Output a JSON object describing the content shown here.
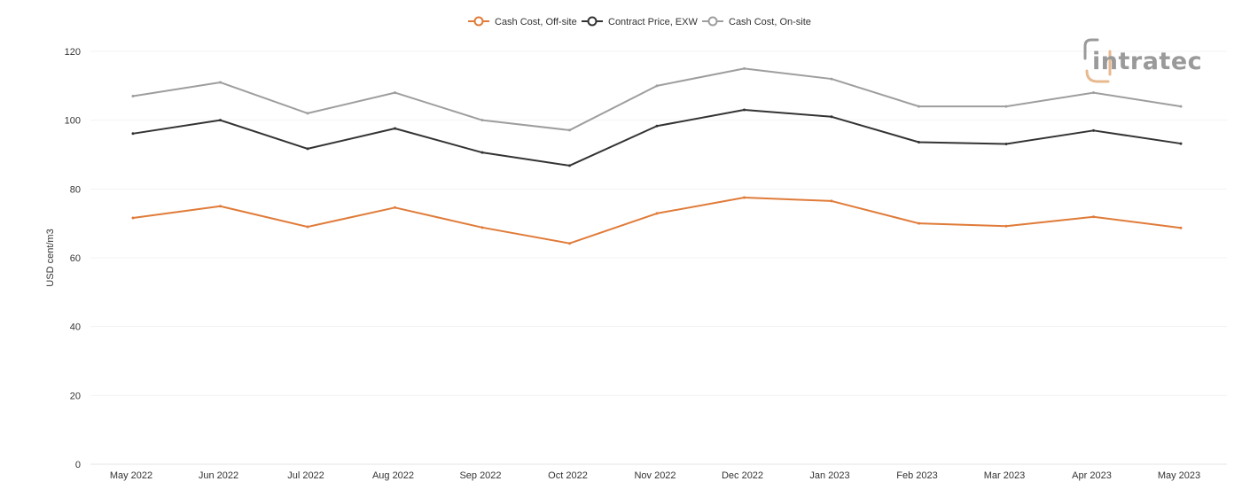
{
  "chart_data": {
    "type": "line",
    "categories": [
      "May 2022",
      "Jun 2022",
      "Jul 2022",
      "Aug 2022",
      "Sep 2022",
      "Oct 2022",
      "Nov 2022",
      "Dec 2022",
      "Jan 2023",
      "Feb 2023",
      "Mar 2023",
      "Apr 2023",
      "May 2023"
    ],
    "series": [
      {
        "name": "Cash Cost, Off-site",
        "color": "#e07b39",
        "values": [
          71.6,
          75.0,
          69.0,
          74.6,
          68.8,
          64.2,
          72.9,
          77.5,
          76.5,
          70.0,
          69.2,
          71.9,
          68.7
        ]
      },
      {
        "name": "Contract Price, EXW",
        "color": "#333333",
        "values": [
          96.1,
          100.0,
          91.7,
          97.6,
          90.6,
          86.8,
          98.3,
          103.0,
          101.0,
          93.6,
          93.1,
          97.0,
          93.2
        ]
      },
      {
        "name": "Cash Cost, On-site",
        "color": "#9e9e9e",
        "values": [
          107.0,
          111.0,
          102.0,
          108.0,
          100.0,
          97.1,
          110.0,
          115.0,
          112.0,
          104.0,
          104.0,
          108.0,
          104.0
        ]
      }
    ],
    "ylabel": "USD cent/m3",
    "xlabel": "",
    "ylim": [
      0,
      120
    ],
    "yticks": [
      0,
      20,
      40,
      60,
      80,
      100,
      120
    ],
    "grid": true,
    "legend_position": "top-center"
  },
  "logo": {
    "text": "intratec",
    "colors": {
      "mark": "#9a9a9a",
      "accent": "#e8b98f"
    }
  }
}
